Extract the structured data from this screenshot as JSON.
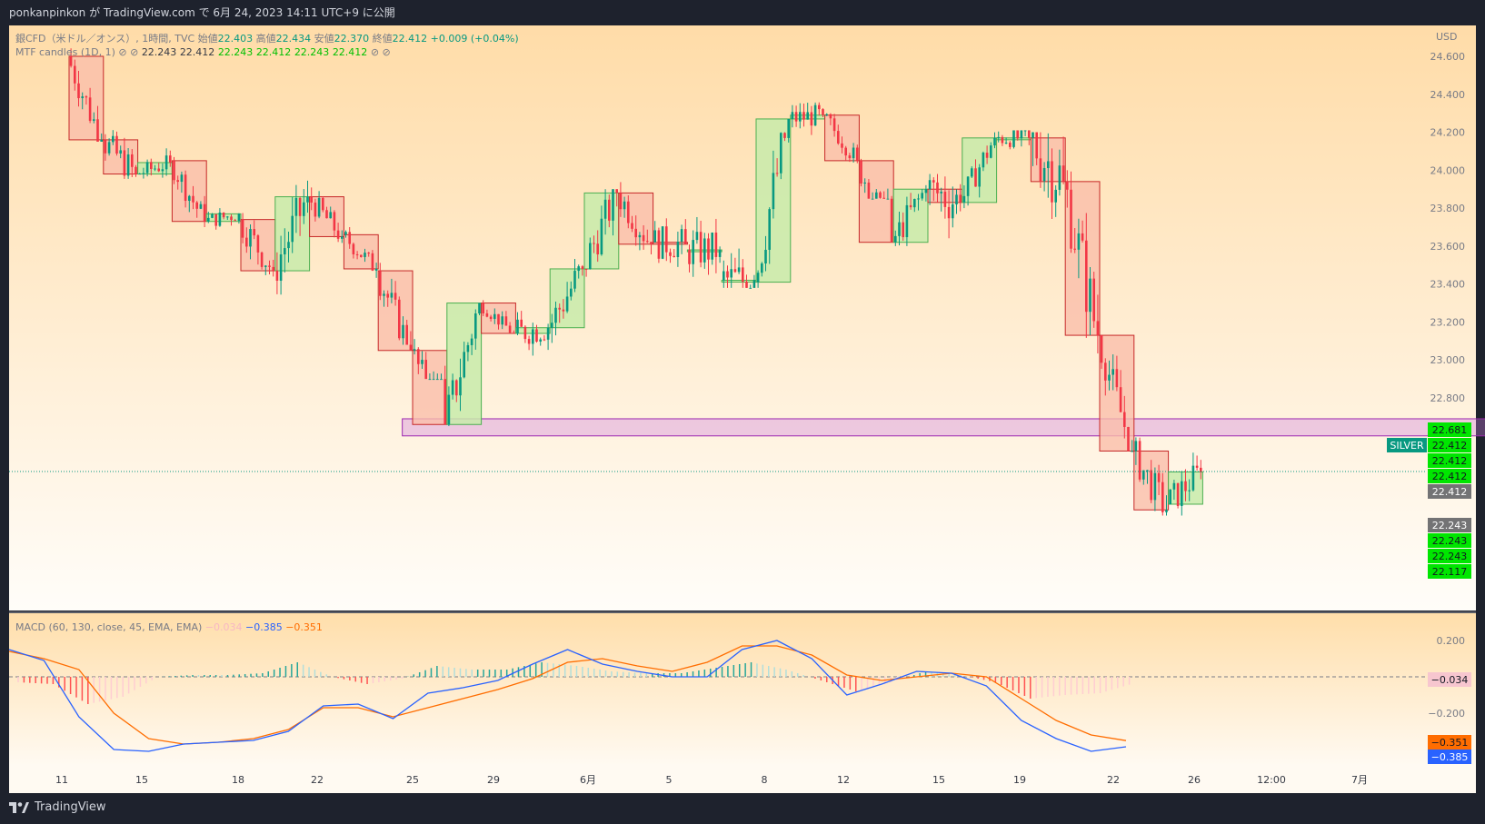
{
  "header": {
    "text": "ponkanpinkon が TradingView.com で 6月 24, 2023 14:11 UTC+9 に公開"
  },
  "footer": {
    "brand": "TradingView"
  },
  "chart_data": {
    "type": "candlestick",
    "symbol_line": {
      "name": "銀CFD（米ドル／オンス）, 1時間, TVC",
      "open_label": "始値",
      "open": "22.403",
      "high_label": "高値",
      "high": "22.434",
      "low_label": "安値",
      "low": "22.370",
      "close_label": "終値",
      "close": "22.412",
      "change": "+0.009 (+0.04%)"
    },
    "indicator_line": {
      "name": "MTF candles (1D, 1)",
      "values": [
        "22.243",
        "22.412",
        "22.243",
        "22.412",
        "22.243",
        "22.412"
      ]
    },
    "currency": "USD",
    "y_ticks": [
      "24.600",
      "24.400",
      "24.200",
      "24.000",
      "23.800",
      "23.600",
      "23.400",
      "23.200",
      "23.000",
      "22.800"
    ],
    "ylim": [
      21.956,
      24.745
    ],
    "x_ticks": [
      "11",
      "15",
      "18",
      "22",
      "25",
      "29",
      "6月",
      "5",
      "8",
      "12",
      "15",
      "19",
      "22",
      "26",
      "12:00",
      "7月"
    ],
    "zone": {
      "from_day": 19.4,
      "to_day": 84,
      "low": 22.6,
      "high": 22.69
    },
    "current_price": "22.412",
    "right_labels": {
      "symbol_tag": "SILVER",
      "values": [
        "22.681",
        "22.412",
        "22.412",
        "22.412",
        "22.412",
        "22.243",
        "22.243",
        "22.243",
        "22.117"
      ]
    },
    "daily_candles": [
      {
        "o": 24.6,
        "h": 24.65,
        "l": 24.15,
        "c": 24.16
      },
      {
        "o": 24.16,
        "h": 24.22,
        "l": 23.75,
        "c": 23.98
      },
      {
        "o": 23.98,
        "h": 24.12,
        "l": 23.85,
        "c": 24.04
      },
      {
        "o": 24.05,
        "h": 24.1,
        "l": 23.7,
        "c": 23.73
      },
      {
        "o": 23.73,
        "h": 23.8,
        "l": 23.55,
        "c": 23.77
      },
      {
        "o": 23.74,
        "h": 23.78,
        "l": 23.3,
        "c": 23.47
      },
      {
        "o": 23.47,
        "h": 24.02,
        "l": 23.3,
        "c": 23.86
      },
      {
        "o": 23.86,
        "h": 23.95,
        "l": 23.58,
        "c": 23.65
      },
      {
        "o": 23.66,
        "h": 23.7,
        "l": 23.4,
        "c": 23.48
      },
      {
        "o": 23.47,
        "h": 23.6,
        "l": 23.08,
        "c": 23.05
      },
      {
        "o": 23.05,
        "h": 23.4,
        "l": 22.9,
        "c": 22.66
      },
      {
        "o": 22.66,
        "h": 23.3,
        "l": 22.63,
        "c": 23.3
      },
      {
        "o": 23.3,
        "h": 23.35,
        "l": 23.14,
        "c": 23.14
      },
      {
        "o": 23.14,
        "h": 23.34,
        "l": 22.9,
        "c": 23.17
      },
      {
        "o": 23.17,
        "h": 23.6,
        "l": 23.0,
        "c": 23.48
      },
      {
        "o": 23.48,
        "h": 23.9,
        "l": 23.3,
        "c": 23.88
      },
      {
        "o": 23.88,
        "h": 24.03,
        "l": 23.55,
        "c": 23.61
      },
      {
        "o": 23.62,
        "h": 23.85,
        "l": 23.35,
        "c": 23.61
      },
      {
        "o": 23.58,
        "h": 23.8,
        "l": 23.22,
        "c": 23.58
      },
      {
        "o": 23.42,
        "h": 24.05,
        "l": 23.38,
        "c": 23.42
      },
      {
        "o": 23.41,
        "h": 24.2,
        "l": 23.38,
        "c": 24.27
      },
      {
        "o": 24.27,
        "h": 24.52,
        "l": 24.18,
        "c": 24.29
      },
      {
        "o": 24.29,
        "h": 24.3,
        "l": 24.0,
        "c": 24.05
      },
      {
        "o": 24.05,
        "h": 24.4,
        "l": 23.85,
        "c": 23.62
      },
      {
        "o": 23.62,
        "h": 24.07,
        "l": 23.6,
        "c": 23.9
      },
      {
        "o": 23.9,
        "h": 23.98,
        "l": 23.22,
        "c": 23.83
      },
      {
        "o": 23.83,
        "h": 24.2,
        "l": 23.8,
        "c": 24.17
      },
      {
        "o": 24.17,
        "h": 24.21,
        "l": 23.92,
        "c": 24.17
      },
      {
        "o": 24.17,
        "h": 24.2,
        "l": 23.12,
        "c": 23.94
      },
      {
        "o": 23.94,
        "h": 24.0,
        "l": 22.95,
        "c": 23.13
      },
      {
        "o": 23.13,
        "h": 23.13,
        "l": 22.52,
        "c": 22.52
      },
      {
        "o": 22.52,
        "h": 22.72,
        "l": 22.18,
        "c": 22.21
      },
      {
        "o": 22.24,
        "h": 22.65,
        "l": 22.17,
        "c": 22.41
      }
    ],
    "macd": {
      "label": "MACD (60, 130, close, 45, EMA, EMA)",
      "values": [
        "−0.034",
        "−0.385",
        "−0.351"
      ],
      "y_ticks": [
        "0.200",
        "0.000",
        "−0.200"
      ],
      "ylim": [
        -0.45,
        0.25
      ],
      "right_labels": [
        "−0.034",
        "−0.351",
        "−0.385"
      ],
      "macd_line": [
        0.15,
        0.09,
        -0.22,
        -0.4,
        -0.41,
        -0.37,
        -0.36,
        -0.35,
        -0.3,
        -0.16,
        -0.15,
        -0.23,
        -0.09,
        -0.06,
        -0.02,
        0.07,
        0.15,
        0.07,
        0.03,
        0.0,
        0.0,
        0.15,
        0.2,
        0.1,
        -0.1,
        -0.04,
        0.03,
        0.02,
        -0.05,
        -0.24,
        -0.34,
        -0.41,
        -0.385
      ],
      "signal_line": [
        0.14,
        0.1,
        0.04,
        -0.2,
        -0.34,
        -0.37,
        -0.36,
        -0.34,
        -0.29,
        -0.17,
        -0.17,
        -0.22,
        -0.17,
        -0.12,
        -0.07,
        -0.01,
        0.08,
        0.1,
        0.06,
        0.03,
        0.08,
        0.17,
        0.17,
        0.12,
        0.01,
        -0.02,
        0.0,
        0.02,
        0.0,
        -0.12,
        -0.24,
        -0.32,
        -0.351
      ],
      "histogram": [
        -0.03,
        -0.04,
        -0.15,
        -0.11,
        0.0,
        0.01,
        0.01,
        0.02,
        0.08,
        0.0,
        -0.04,
        -0.01,
        0.06,
        0.04,
        0.04,
        0.08,
        0.06,
        0.03,
        0.02,
        0.02,
        0.05,
        0.08,
        0.04,
        -0.02,
        -0.08,
        -0.03,
        0.03,
        0.01,
        -0.03,
        -0.12,
        -0.1,
        -0.09,
        -0.034
      ]
    }
  }
}
